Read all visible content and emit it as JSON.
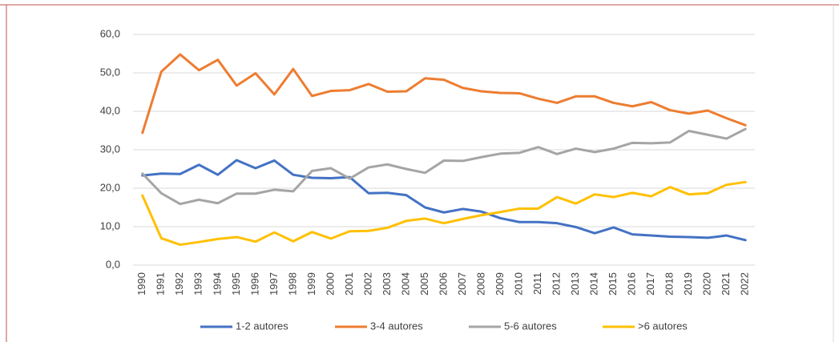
{
  "chart_data": {
    "type": "line",
    "categories": [
      "1990",
      "1991",
      "1992",
      "1993",
      "1994",
      "1995",
      "1996",
      "1997",
      "1998",
      "1999",
      "2000",
      "2001",
      "2002",
      "2003",
      "2004",
      "2005",
      "2006",
      "2007",
      "2008",
      "2009",
      "2010",
      "2011",
      "2012",
      "2013",
      "2014",
      "2015",
      "2016",
      "2017",
      "2018",
      "2019",
      "2020",
      "2021",
      "2022"
    ],
    "series": [
      {
        "name": "1-2 autores",
        "color": "#4472c4",
        "values": [
          23.3,
          23.8,
          23.7,
          26.1,
          23.5,
          27.3,
          25.2,
          27.2,
          23.5,
          22.7,
          22.6,
          22.9,
          18.7,
          18.8,
          18.2,
          15.0,
          13.7,
          14.6,
          13.9,
          12.2,
          11.2,
          11.2,
          10.9,
          9.9,
          8.3,
          9.8,
          8.0,
          7.7,
          7.4,
          7.3,
          7.1,
          7.7,
          6.5
        ]
      },
      {
        "name": "3-4 autores",
        "color": "#ed7d31",
        "values": [
          34.4,
          50.3,
          54.8,
          50.7,
          53.4,
          46.7,
          49.9,
          44.4,
          51.0,
          44.0,
          45.3,
          45.5,
          47.1,
          45.1,
          45.2,
          48.6,
          48.2,
          46.1,
          45.2,
          44.8,
          44.7,
          43.3,
          42.2,
          43.9,
          43.9,
          42.2,
          41.3,
          42.4,
          40.3,
          39.4,
          40.2,
          38.2,
          36.4
        ]
      },
      {
        "name": "5-6 autores",
        "color": "#a5a5a5",
        "values": [
          23.8,
          18.7,
          15.9,
          17.0,
          16.1,
          18.6,
          18.6,
          19.6,
          19.2,
          24.5,
          25.2,
          22.5,
          25.4,
          26.2,
          25.0,
          24.0,
          27.2,
          27.1,
          28.1,
          29.0,
          29.2,
          30.7,
          28.9,
          30.3,
          29.4,
          30.3,
          31.8,
          31.7,
          31.9,
          34.9,
          33.9,
          32.9,
          35.4
        ]
      },
      {
        "name": ">6 autores",
        "color": "#ffc000",
        "values": [
          18.1,
          7.0,
          5.3,
          6.0,
          6.8,
          7.3,
          6.1,
          8.5,
          6.2,
          8.6,
          6.9,
          8.8,
          8.9,
          9.7,
          11.5,
          12.1,
          10.9,
          12.0,
          13.0,
          13.8,
          14.7,
          14.7,
          17.7,
          16.0,
          18.4,
          17.7,
          18.8,
          17.9,
          20.3,
          18.4,
          18.7,
          20.9,
          21.6
        ]
      }
    ],
    "ylim": [
      0,
      60
    ],
    "yticks": [
      {
        "value": 0,
        "label": "0,0"
      },
      {
        "value": 10,
        "label": "10,0"
      },
      {
        "value": 20,
        "label": "20,0"
      },
      {
        "value": 30,
        "label": "30,0"
      },
      {
        "value": 40,
        "label": "40,0"
      },
      {
        "value": 50,
        "label": "50,0"
      },
      {
        "value": 60,
        "label": "60,0"
      }
    ],
    "grid": true,
    "legend": "bottom"
  }
}
